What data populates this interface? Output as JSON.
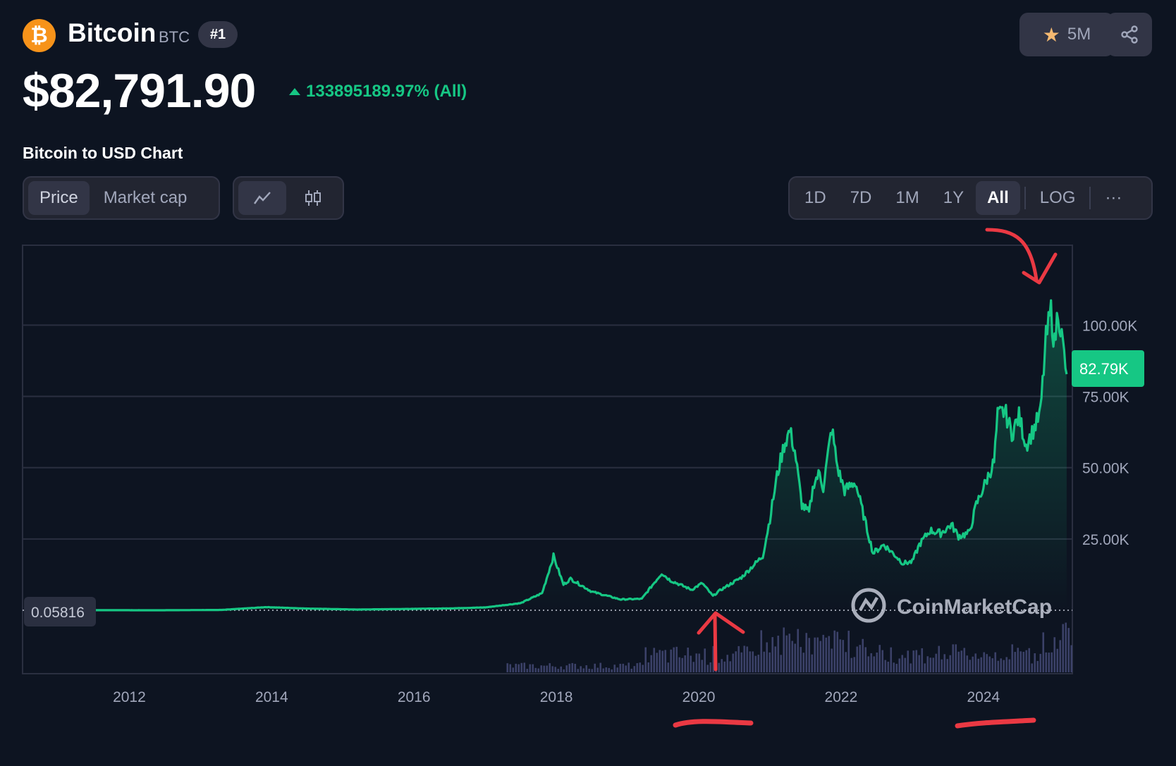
{
  "header": {
    "coin_name": "Bitcoin",
    "coin_symbol": "BTC",
    "rank": "#1",
    "logo_glyph": "₿",
    "watchlist_count": "5M",
    "price": "$82,791.90",
    "change": "133895189.97% (All)",
    "icons": {
      "logo": "bitcoin-logo-icon",
      "star": "star-icon",
      "share": "share-icon",
      "change": "triangle-up-icon"
    }
  },
  "chart_section": {
    "title": "Bitcoin to USD Chart",
    "data_toggle": [
      "Price",
      "Market cap"
    ],
    "chart_type_icons": [
      "line-chart-icon",
      "candlestick-icon"
    ],
    "ranges": [
      "1D",
      "7D",
      "1M",
      "1Y",
      "All"
    ],
    "active_range": "All",
    "log_label": "LOG",
    "more_label": "···"
  },
  "colors": {
    "background": "#0d1421",
    "price_line": "#16c784",
    "up": "#16c784",
    "volume": "#3b4168",
    "annotation": "#ea3943",
    "brand": "#f7931a"
  },
  "chart_data": {
    "type": "area",
    "title": "",
    "xlabel": "",
    "ylabel": "",
    "x_ticks": [
      "2012",
      "2014",
      "2016",
      "2018",
      "2020",
      "2022",
      "2024"
    ],
    "y_ticks": [
      "25.00K",
      "50.00K",
      "75.00K",
      "100.00K"
    ],
    "y_range": [
      0,
      128000
    ],
    "x_range": [
      2010.5,
      2025.25
    ],
    "current_price_label": "82.79K",
    "start_price_label": "0.05816",
    "watermark": "CoinMarketCap",
    "grid": true,
    "series": [
      {
        "values": [
          [
            2010.55,
            0.06
          ],
          [
            2011.5,
            15
          ],
          [
            2012.5,
            10
          ],
          [
            2013.3,
            120
          ],
          [
            2013.92,
            1100
          ],
          [
            2014.5,
            600
          ],
          [
            2015.2,
            250
          ],
          [
            2016.5,
            650
          ],
          [
            2017.0,
            1000
          ],
          [
            2017.5,
            2500
          ],
          [
            2017.8,
            6000
          ],
          [
            2017.96,
            19000
          ],
          [
            2018.1,
            9000
          ],
          [
            2018.2,
            11000
          ],
          [
            2018.5,
            6500
          ],
          [
            2018.9,
            3800
          ],
          [
            2019.2,
            4000
          ],
          [
            2019.48,
            13000
          ],
          [
            2019.6,
            10500
          ],
          [
            2019.9,
            7200
          ],
          [
            2020.05,
            9500
          ],
          [
            2020.2,
            5000
          ],
          [
            2020.3,
            7000
          ],
          [
            2020.6,
            11500
          ],
          [
            2020.9,
            19000
          ],
          [
            2021.0,
            32000
          ],
          [
            2021.1,
            47000
          ],
          [
            2021.2,
            58000
          ],
          [
            2021.28,
            63000
          ],
          [
            2021.35,
            56000
          ],
          [
            2021.45,
            37000
          ],
          [
            2021.55,
            34000
          ],
          [
            2021.62,
            45000
          ],
          [
            2021.7,
            48000
          ],
          [
            2021.75,
            43000
          ],
          [
            2021.87,
            64000
          ],
          [
            2021.95,
            50000
          ],
          [
            2022.05,
            42000
          ],
          [
            2022.2,
            45000
          ],
          [
            2022.35,
            30000
          ],
          [
            2022.45,
            20000
          ],
          [
            2022.6,
            23000
          ],
          [
            2022.75,
            19500
          ],
          [
            2022.87,
            16500
          ],
          [
            2023.0,
            17000
          ],
          [
            2023.1,
            23000
          ],
          [
            2023.25,
            28000
          ],
          [
            2023.4,
            27000
          ],
          [
            2023.55,
            30000
          ],
          [
            2023.65,
            26000
          ],
          [
            2023.8,
            27000
          ],
          [
            2023.9,
            37000
          ],
          [
            2024.0,
            43000
          ],
          [
            2024.15,
            52000
          ],
          [
            2024.2,
            68000
          ],
          [
            2024.3,
            70000
          ],
          [
            2024.4,
            62000
          ],
          [
            2024.5,
            68000
          ],
          [
            2024.6,
            58000
          ],
          [
            2024.7,
            63000
          ],
          [
            2024.8,
            69000
          ],
          [
            2024.88,
            95000
          ],
          [
            2024.95,
            105000
          ],
          [
            2025.0,
            93000
          ],
          [
            2025.05,
            106000
          ],
          [
            2025.1,
            96000
          ],
          [
            2025.17,
            82790
          ]
        ]
      }
    ]
  }
}
